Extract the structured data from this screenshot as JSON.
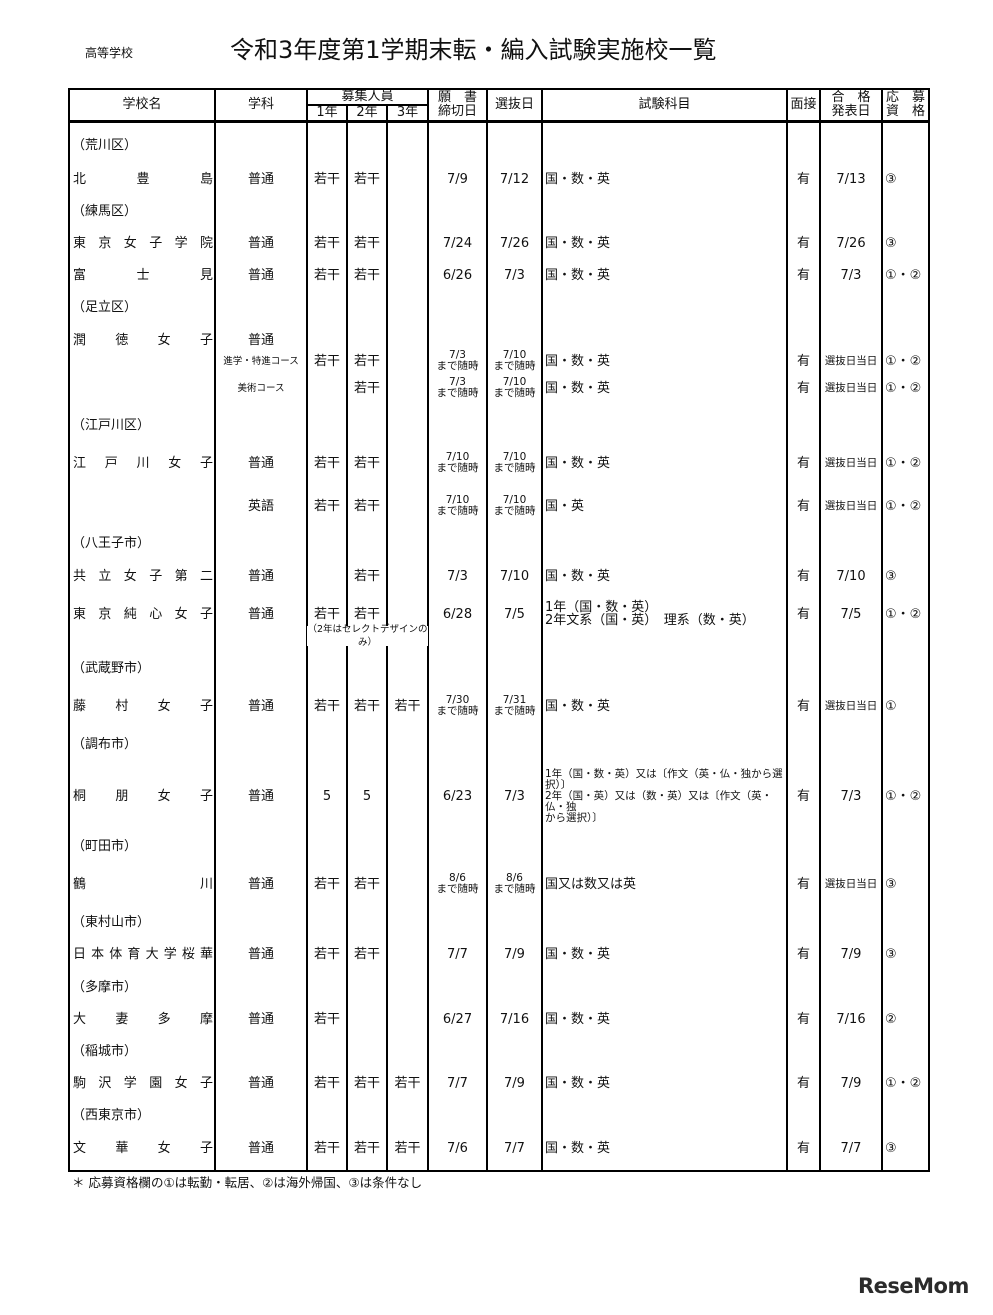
{
  "header": {
    "category": "高等学校",
    "title": "令和3年度第1学期末転・編入試験実施校一覧"
  },
  "columns": {
    "school": "学校名",
    "dept": "学科",
    "recruit": "募集人員",
    "y1": "1年",
    "y2": "2年",
    "y3": "3年",
    "deadline": "願　書\n締切日",
    "exam_date": "選抜日",
    "subjects": "試験科目",
    "interview": "面接",
    "announce": "合　格\n発表日",
    "eligibility": "応　募\n資　格"
  },
  "rows": [
    {
      "type": "district",
      "label": "（荒川区）"
    },
    {
      "type": "school",
      "name": "北豊島",
      "dept": "普通",
      "y1": "若干",
      "y2": "若干",
      "y3": "",
      "deadline": "7/9",
      "exam_date": "7/12",
      "subjects": "国・数・英",
      "interview": "有",
      "announce": "7/13",
      "eligibility": "③"
    },
    {
      "type": "district",
      "label": "（練馬区）"
    },
    {
      "type": "school",
      "name": "東京女子学院",
      "dept": "普通",
      "y1": "若干",
      "y2": "若干",
      "y3": "",
      "deadline": "7/24",
      "exam_date": "7/26",
      "subjects": "国・数・英",
      "interview": "有",
      "announce": "7/26",
      "eligibility": "③"
    },
    {
      "type": "school",
      "name": "富士見",
      "dept": "普通",
      "y1": "若干",
      "y2": "若干",
      "y3": "",
      "deadline": "6/26",
      "exam_date": "7/3",
      "subjects": "国・数・英",
      "interview": "有",
      "announce": "7/3",
      "eligibility": "①・②"
    },
    {
      "type": "district",
      "label": "（足立区）"
    },
    {
      "type": "school",
      "name": "潤徳女子",
      "dept": "普通",
      "y1": "",
      "y2": "",
      "y3": "",
      "deadline": "",
      "exam_date": "",
      "subjects": "",
      "interview": "",
      "announce": "",
      "eligibility": ""
    },
    {
      "type": "course",
      "name": "",
      "dept": "進学・特進コース",
      "y1": "若干",
      "y2": "若干",
      "y3": "",
      "deadline": "7/3\nまで随時",
      "exam_date": "7/10\nまで随時",
      "subjects": "国・数・英",
      "interview": "有",
      "announce": "選抜日当日",
      "eligibility": "①・②"
    },
    {
      "type": "course",
      "name": "",
      "dept": "美術コース",
      "y1": "",
      "y2": "若干",
      "y3": "",
      "deadline": "7/3\nまで随時",
      "exam_date": "7/10\nまで随時",
      "subjects": "国・数・英",
      "interview": "有",
      "announce": "選抜日当日",
      "eligibility": "①・②"
    },
    {
      "type": "district",
      "label": "（江戸川区）"
    },
    {
      "type": "school",
      "name": "江戸川女子",
      "dept": "普通",
      "y1": "若干",
      "y2": "若干",
      "y3": "",
      "deadline": "7/10\nまで随時",
      "exam_date": "7/10\nまで随時",
      "subjects": "国・数・英",
      "interview": "有",
      "announce": "選抜日当日",
      "eligibility": "①・②"
    },
    {
      "type": "school",
      "name": "",
      "dept": "英語",
      "y1": "若干",
      "y2": "若干",
      "y3": "",
      "deadline": "7/10\nまで随時",
      "exam_date": "7/10\nまで随時",
      "subjects": "国・英",
      "interview": "有",
      "announce": "選抜日当日",
      "eligibility": "①・②"
    },
    {
      "type": "district",
      "label": "（八王子市）"
    },
    {
      "type": "school",
      "name": "共立女子第二",
      "dept": "普通",
      "y1": "",
      "y2": "若干",
      "y3": "",
      "deadline": "7/3",
      "exam_date": "7/10",
      "subjects": "国・数・英",
      "interview": "有",
      "announce": "7/10",
      "eligibility": "③"
    },
    {
      "type": "school",
      "name": "東京純心女子",
      "dept": "普通",
      "y1": "若干",
      "y2": "若干",
      "y3": "",
      "deadline": "6/28",
      "exam_date": "7/5",
      "subjects": "1年（国・数・英）\n2年文系（国・英）　理系（数・英）",
      "interview": "有",
      "announce": "7/5",
      "eligibility": "①・②",
      "note": "（2年はセレクトデザインのみ）"
    },
    {
      "type": "district",
      "label": "（武蔵野市）"
    },
    {
      "type": "school",
      "name": "藤村女子",
      "dept": "普通",
      "y1": "若干",
      "y2": "若干",
      "y3": "若干",
      "deadline": "7/30\nまで随時",
      "exam_date": "7/31\nまで随時",
      "subjects": "国・数・英",
      "interview": "有",
      "announce": "選抜日当日",
      "eligibility": "①"
    },
    {
      "type": "district",
      "label": "（調布市）"
    },
    {
      "type": "school",
      "name": "桐朋女子",
      "dept": "普通",
      "y1": "5",
      "y2": "5",
      "y3": "",
      "deadline": "6/23",
      "exam_date": "7/3",
      "subjects": "1年（国・数・英）又は〔作文（英・仏・独から選\n択）〕\n2年（国・英）又は（数・英）又は〔作文（英・仏・独\nから選択）〕",
      "interview": "有",
      "announce": "7/3",
      "eligibility": "①・②"
    },
    {
      "type": "district",
      "label": "（町田市）"
    },
    {
      "type": "school",
      "name": "鶴川",
      "dept": "普通",
      "y1": "若干",
      "y2": "若干",
      "y3": "",
      "deadline": "8/6\nまで随時",
      "exam_date": "8/6\nまで随時",
      "subjects": "国又は数又は英",
      "interview": "有",
      "announce": "選抜日当日",
      "eligibility": "③"
    },
    {
      "type": "district",
      "label": "（東村山市）"
    },
    {
      "type": "school",
      "name": "日本体育大学桜華",
      "dept": "普通",
      "y1": "若干",
      "y2": "若干",
      "y3": "",
      "deadline": "7/7",
      "exam_date": "7/9",
      "subjects": "国・数・英",
      "interview": "有",
      "announce": "7/9",
      "eligibility": "③"
    },
    {
      "type": "district",
      "label": "（多摩市）"
    },
    {
      "type": "school",
      "name": "大妻多摩",
      "dept": "普通",
      "y1": "若干",
      "y2": "",
      "y3": "",
      "deadline": "6/27",
      "exam_date": "7/16",
      "subjects": "国・数・英",
      "interview": "有",
      "announce": "7/16",
      "eligibility": "②"
    },
    {
      "type": "district",
      "label": "（稲城市）"
    },
    {
      "type": "school",
      "name": "駒沢学園女子",
      "dept": "普通",
      "y1": "若干",
      "y2": "若干",
      "y3": "若干",
      "deadline": "7/7",
      "exam_date": "7/9",
      "subjects": "国・数・英",
      "interview": "有",
      "announce": "7/9",
      "eligibility": "①・②"
    },
    {
      "type": "district",
      "label": "（西東京市）"
    },
    {
      "type": "school",
      "name": "文華女子",
      "dept": "普通",
      "y1": "若干",
      "y2": "若干",
      "y3": "若干",
      "deadline": "7/6",
      "exam_date": "7/7",
      "subjects": "国・数・英",
      "interview": "有",
      "announce": "7/7",
      "eligibility": "③"
    }
  ],
  "footnote": "＊ 応募資格欄の①は転勤・転居、②は海外帰国、③は条件なし",
  "watermark": "ReseMom"
}
